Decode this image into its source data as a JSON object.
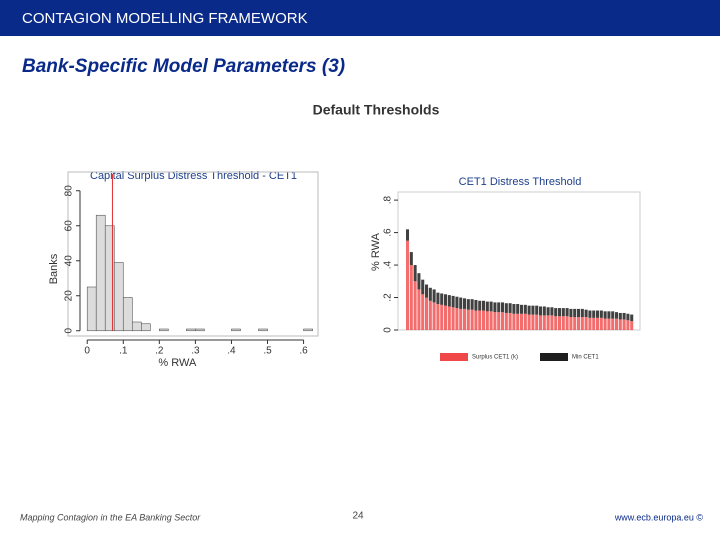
{
  "header": "CONTAGION MODELLING FRAMEWORK",
  "title": "Bank-Specific Model Parameters (3)",
  "subtitle": "Default Thresholds",
  "footer": {
    "left": "Mapping Contagion in the EA Banking Sector",
    "page": "24",
    "right": "www.ecb.europa.eu ©"
  },
  "chart_data": [
    {
      "type": "histogram",
      "title": "Capital Surplus Distress Threshold - CET1",
      "x_label": "% RWA",
      "y_label": "Banks",
      "color": "#dcdcdc",
      "edge_color": "#555555",
      "bins": [
        0,
        0.025,
        0.05,
        0.075,
        0.1,
        0.125,
        0.15,
        0.175,
        0.2,
        0.225,
        0.25,
        0.275,
        0.3,
        0.325,
        0.35,
        0.375,
        0.4,
        0.425,
        0.45,
        0.475,
        0.5,
        0.525,
        0.55,
        0.575,
        0.6,
        0.625
      ],
      "counts": [
        25,
        66,
        60,
        39,
        19,
        5,
        4,
        0,
        1,
        0,
        0,
        1,
        1,
        0,
        0,
        0,
        1,
        0,
        0,
        1,
        0,
        0,
        0,
        0,
        1
      ],
      "ref_line": 0.07,
      "ref_color": "#e03030",
      "xlim": [
        -0.02,
        0.64
      ],
      "ylim": [
        -3,
        85
      ],
      "xticks": [
        0,
        {
          "value": 0.1,
          "label": ".1"
        },
        {
          "value": 0.2,
          "label": ".2"
        },
        {
          "value": 0.3,
          "label": ".3"
        },
        {
          "value": 0.4,
          "label": ".4"
        },
        {
          "value": 0.5,
          "label": ".5"
        },
        {
          "value": 0.6,
          "label": ".6"
        }
      ],
      "yticks": [
        0,
        20,
        40,
        60,
        80
      ]
    },
    {
      "type": "stacked_bar",
      "title": "CET1 Distress Threshold",
      "y_label": "% RWA",
      "categories": [
        null,
        null,
        null,
        null,
        null,
        null,
        null,
        null,
        null,
        null,
        null,
        null,
        null,
        null,
        null,
        null,
        null,
        null,
        null,
        null,
        null,
        null,
        null,
        null,
        null,
        null,
        null,
        null,
        null,
        null,
        null,
        null,
        null,
        null,
        null,
        null,
        null,
        null,
        null,
        null,
        null,
        null,
        null,
        null,
        null,
        null,
        null,
        null,
        null,
        null,
        null,
        null,
        null,
        null,
        null,
        null,
        null,
        null,
        null,
        null
      ],
      "series": [
        {
          "name": "Surplus CET1 (k)",
          "color": "#f04848",
          "values": [
            0.55,
            0.4,
            0.3,
            0.25,
            0.22,
            0.2,
            0.18,
            0.17,
            0.16,
            0.155,
            0.15,
            0.145,
            0.14,
            0.135,
            0.13,
            0.13,
            0.125,
            0.125,
            0.12,
            0.12,
            0.12,
            0.115,
            0.115,
            0.11,
            0.11,
            0.11,
            0.105,
            0.105,
            0.1,
            0.1,
            0.1,
            0.1,
            0.095,
            0.095,
            0.095,
            0.09,
            0.09,
            0.09,
            0.09,
            0.085,
            0.085,
            0.085,
            0.085,
            0.08,
            0.08,
            0.08,
            0.08,
            0.08,
            0.075,
            0.075,
            0.075,
            0.075,
            0.07,
            0.07,
            0.07,
            0.07,
            0.065,
            0.065,
            0.06,
            0.055
          ]
        },
        {
          "name": "Min CET1",
          "color": "#1e1e1e",
          "values": [
            0.07,
            0.08,
            0.1,
            0.1,
            0.09,
            0.08,
            0.08,
            0.08,
            0.07,
            0.07,
            0.07,
            0.07,
            0.07,
            0.07,
            0.07,
            0.065,
            0.065,
            0.065,
            0.065,
            0.06,
            0.06,
            0.06,
            0.06,
            0.06,
            0.06,
            0.06,
            0.06,
            0.06,
            0.06,
            0.06,
            0.055,
            0.055,
            0.055,
            0.055,
            0.055,
            0.055,
            0.055,
            0.05,
            0.05,
            0.05,
            0.05,
            0.05,
            0.05,
            0.05,
            0.05,
            0.05,
            0.05,
            0.045,
            0.045,
            0.045,
            0.045,
            0.045,
            0.045,
            0.045,
            0.045,
            0.04,
            0.04,
            0.04,
            0.04,
            0.04
          ]
        }
      ],
      "ylim": [
        0,
        0.85
      ],
      "yticks": [
        0,
        {
          "value": 0.2,
          "label": ".2"
        },
        {
          "value": 0.4,
          "label": ".4"
        },
        {
          "value": 0.6,
          "label": ".6"
        },
        {
          "value": 0.8,
          "label": ".8"
        }
      ]
    }
  ]
}
